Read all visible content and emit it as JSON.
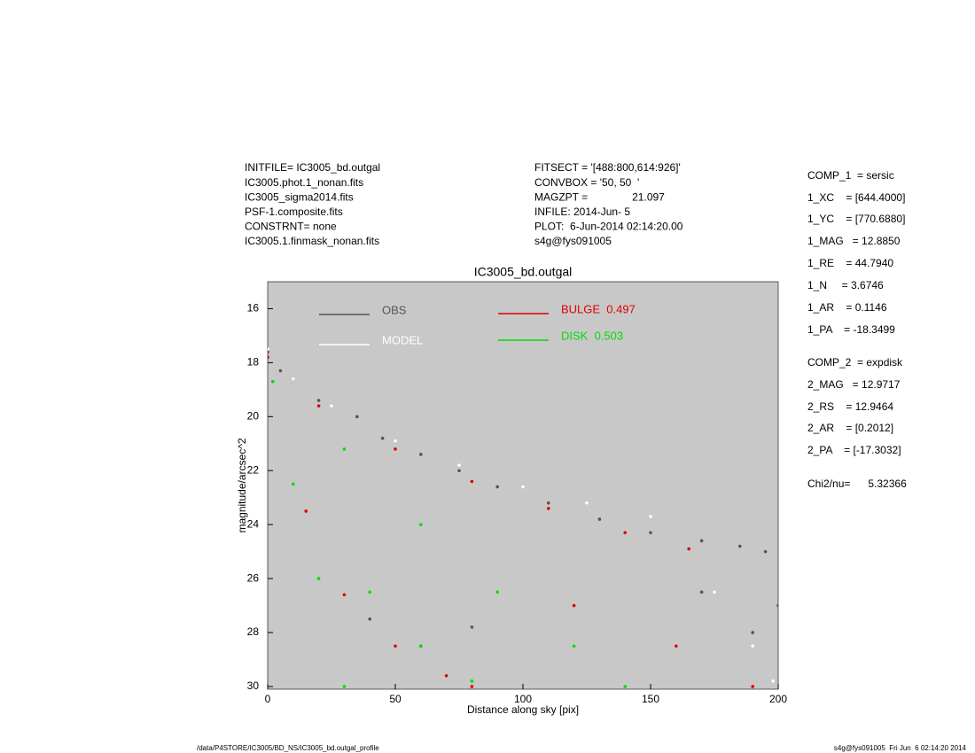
{
  "header_left": [
    "INITFILE= IC3005_bd.outgal",
    "IC3005.phot.1_nonan.fits",
    "IC3005_sigma2014.fits",
    "PSF-1.composite.fits",
    "CONSTRNT= none",
    "IC3005.1.finmask_nonan.fits"
  ],
  "header_mid": [
    "FITSECT = '[488:800,614:926]'",
    "CONVBOX = '50, 50  '",
    "MAGZPT =               21.097",
    "INFILE: 2014-Jun- 5",
    "PLOT:  6-Jun-2014 02:14:20.00",
    "s4g@fys091005"
  ],
  "params": [
    "COMP_1  = sersic",
    "1_XC    = [644.4000]",
    "1_YC    = [770.6880]",
    "1_MAG   = 12.8850",
    "1_RE    = 44.7940",
    "1_N     = 3.6746",
    "1_AR    = 0.1146",
    "1_PA    = -18.3499",
    "COMP_2  = expdisk",
    "2_MAG   = 12.9717",
    "2_RS    = 12.9464",
    "2_AR    = [0.2012]",
    "2_PA    = [-17.3032]",
    "Chi2/nu=      5.32366"
  ],
  "footer_left": "/data/P4STORE/IC3005/BD_NS/IC3005_bd.outgal_profile",
  "footer_right": "s4g@fys091005  Fri Jun  6 02:14:20 2014",
  "chart_data": {
    "type": "scatter",
    "title": "IC3005_bd.outgal",
    "x_label": "Distance along sky [pix]",
    "y_label": "magnitude/arcsec^2",
    "xlim": [
      0,
      200
    ],
    "xticks": [
      0,
      50,
      100,
      150,
      200
    ],
    "ylim": [
      30.1,
      15
    ],
    "yticks": [
      16,
      18,
      20,
      22,
      24,
      26,
      28,
      30
    ],
    "background": "#c8c8c8",
    "series": [
      {
        "name": "OBS",
        "color": "#555555",
        "x": [
          0,
          5,
          10,
          20,
          35,
          45,
          60,
          75,
          90,
          110,
          130,
          150,
          170,
          185,
          195,
          40,
          60,
          80,
          170,
          190,
          200
        ],
        "values": [
          17.6,
          18.3,
          18.6,
          19.4,
          20.0,
          20.8,
          21.4,
          22.0,
          22.6,
          23.2,
          23.8,
          24.3,
          24.6,
          24.8,
          25.0,
          27.5,
          28.5,
          27.8,
          26.5,
          28.0,
          27.0
        ]
      },
      {
        "name": "MODEL",
        "color": "#ffffff",
        "x": [
          0,
          10,
          25,
          50,
          75,
          100,
          125,
          150,
          175,
          190,
          198
        ],
        "values": [
          17.5,
          18.6,
          19.6,
          20.9,
          21.8,
          22.6,
          23.2,
          23.7,
          26.5,
          28.5,
          29.8
        ]
      },
      {
        "name": "BULGE  0.497",
        "color": "#e00000",
        "x": [
          0,
          20,
          50,
          80,
          110,
          140,
          165,
          15,
          30,
          50,
          70,
          80,
          120,
          160,
          190
        ],
        "values": [
          17.8,
          19.6,
          21.2,
          22.4,
          23.4,
          24.3,
          24.9,
          23.5,
          26.6,
          28.5,
          29.6,
          30.0,
          27.0,
          28.5,
          30.0
        ]
      },
      {
        "name": "DISK  0.503",
        "color": "#00dd00",
        "x": [
          2,
          30,
          60,
          90,
          120,
          140,
          10,
          20,
          30,
          40,
          60,
          80
        ],
        "values": [
          18.7,
          21.2,
          24.0,
          26.5,
          28.5,
          30.0,
          22.5,
          26.0,
          30.0,
          26.5,
          28.5,
          29.8
        ]
      }
    ]
  }
}
